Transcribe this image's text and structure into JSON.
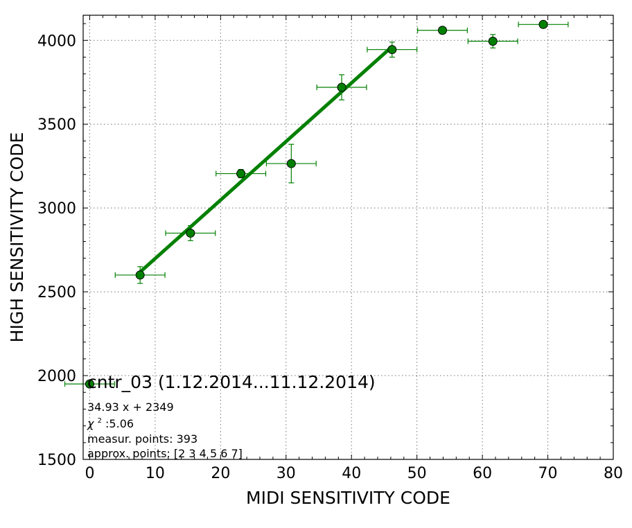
{
  "chart_data": {
    "type": "scatter",
    "xlabel": "MIDI SENSITIVITY CODE",
    "ylabel": "HIGH SENSITIVITY CODE",
    "xlim": [
      -1,
      80
    ],
    "ylim": [
      1500,
      4150
    ],
    "xticks": [
      0,
      10,
      20,
      30,
      40,
      50,
      60,
      70,
      80
    ],
    "yticks": [
      1500,
      2000,
      2500,
      3000,
      3500,
      4000
    ],
    "grid": true,
    "colors": {
      "marker": "#008000",
      "error_bar": "#008000",
      "fit_line": "#008000"
    },
    "series": [
      {
        "points": [
          {
            "x": 0.0,
            "y": 1950,
            "xerr": 3.8,
            "yerr": 0
          },
          {
            "x": 7.7,
            "y": 2600,
            "xerr": 3.8,
            "yerr": 50
          },
          {
            "x": 15.4,
            "y": 2850,
            "xerr": 3.8,
            "yerr": 45
          },
          {
            "x": 23.1,
            "y": 3205,
            "xerr": 3.8,
            "yerr": 25
          },
          {
            "x": 30.8,
            "y": 3265,
            "xerr": 3.8,
            "yerr": 115
          },
          {
            "x": 38.5,
            "y": 3720,
            "xerr": 3.8,
            "yerr": 75
          },
          {
            "x": 46.2,
            "y": 3945,
            "xerr": 3.8,
            "yerr": 45
          },
          {
            "x": 53.9,
            "y": 4060,
            "xerr": 3.8,
            "yerr": 0
          },
          {
            "x": 61.6,
            "y": 3995,
            "xerr": 3.8,
            "yerr": 40
          },
          {
            "x": 69.3,
            "y": 4095,
            "xerr": 3.8,
            "yerr": 0
          }
        ]
      }
    ],
    "fit_line": {
      "slope": 34.93,
      "intercept": 2349,
      "x_start": 7.7,
      "x_end": 46.2
    },
    "legend": {
      "title": "cntr_03 (1.12.2014...11.12.2014)",
      "lines": [
        "34.93 x + 2349",
        "measur. points: 393",
        "approx. points: [2 3 4 5 6 7]"
      ],
      "chi_symbol": "χ",
      "chi_superscript": "2",
      "chi_value": " :5.06",
      "placement": "bottom-left"
    }
  }
}
